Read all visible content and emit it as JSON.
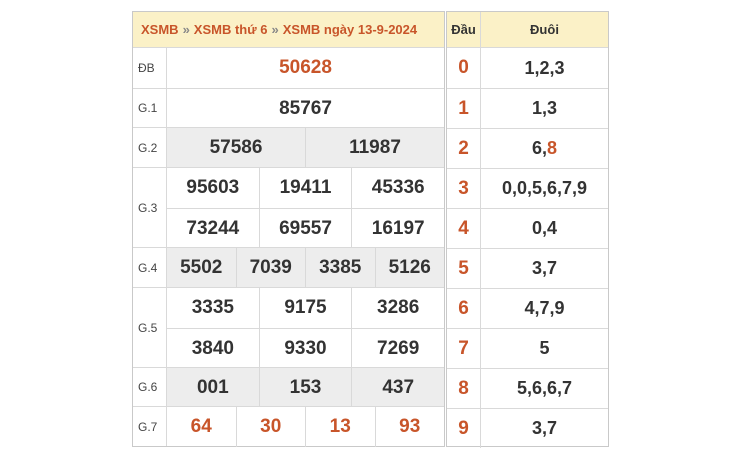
{
  "breadcrumb": {
    "items": [
      "XSMB",
      "XSMB thứ 6",
      "XSMB ngày 13-9-2024"
    ],
    "separator": "»"
  },
  "prizes": [
    {
      "label": "ĐB",
      "lines": [
        [
          "50628"
        ]
      ],
      "shade": false,
      "red": true
    },
    {
      "label": "G.1",
      "lines": [
        [
          "85767"
        ]
      ],
      "shade": false,
      "red": false
    },
    {
      "label": "G.2",
      "lines": [
        [
          "57586",
          "11987"
        ]
      ],
      "shade": true,
      "red": false
    },
    {
      "label": "G.3",
      "lines": [
        [
          "95603",
          "19411",
          "45336"
        ],
        [
          "73244",
          "69557",
          "16197"
        ]
      ],
      "shade": false,
      "red": false
    },
    {
      "label": "G.4",
      "lines": [
        [
          "5502",
          "7039",
          "3385",
          "5126"
        ]
      ],
      "shade": true,
      "red": false
    },
    {
      "label": "G.5",
      "lines": [
        [
          "3335",
          "9175",
          "3286"
        ],
        [
          "3840",
          "9330",
          "7269"
        ]
      ],
      "shade": false,
      "red": false
    },
    {
      "label": "G.6",
      "lines": [
        [
          "001",
          "153",
          "437"
        ]
      ],
      "shade": true,
      "red": false
    },
    {
      "label": "G.7",
      "lines": [
        [
          "64",
          "30",
          "13",
          "93"
        ]
      ],
      "shade": false,
      "red": true
    }
  ],
  "dau_duoi": {
    "header_dau": "Đầu",
    "header_duoi": "Đuôi",
    "rows": [
      {
        "dau": "0",
        "duoi": "1,2,3",
        "highlight": ""
      },
      {
        "dau": "1",
        "duoi": "1,3",
        "highlight": ""
      },
      {
        "dau": "2",
        "duoi": "6,",
        "highlight": "8"
      },
      {
        "dau": "3",
        "duoi": "0,0,5,6,7,9",
        "highlight": ""
      },
      {
        "dau": "4",
        "duoi": "0,4",
        "highlight": ""
      },
      {
        "dau": "5",
        "duoi": "3,7",
        "highlight": ""
      },
      {
        "dau": "6",
        "duoi": "4,7,9",
        "highlight": ""
      },
      {
        "dau": "7",
        "duoi": "5",
        "highlight": ""
      },
      {
        "dau": "8",
        "duoi": "5,6,6,7",
        "highlight": ""
      },
      {
        "dau": "9",
        "duoi": "3,7",
        "highlight": ""
      }
    ]
  },
  "colors": {
    "accent": "#c8552a",
    "header_bg": "#fbf1c7",
    "shade_bg": "#ededed"
  }
}
